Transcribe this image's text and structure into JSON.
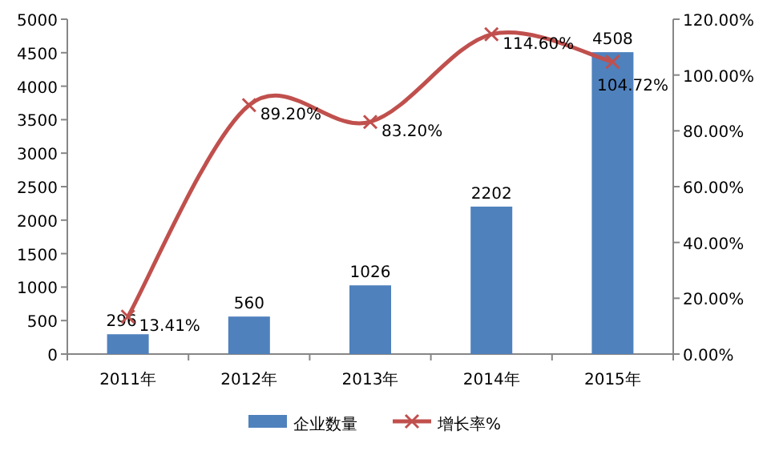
{
  "chart_data": {
    "type": "bar",
    "categories": [
      "2011年",
      "2012年",
      "2013年",
      "2014年",
      "2015年"
    ],
    "series": [
      {
        "name": "企业数量",
        "color": "#4f81bd",
        "values": [
          296,
          560,
          1026,
          2202,
          4508
        ],
        "value_labels": [
          "296",
          "560",
          "1026",
          "2202",
          "4508"
        ]
      },
      {
        "name": "增长率%",
        "type": "line",
        "axis": "y2",
        "color": "#c0504d",
        "marker": "cross",
        "values": [
          13.41,
          89.2,
          83.2,
          114.6,
          104.72
        ],
        "value_labels": [
          "13.41%",
          "89.20%",
          "83.20%",
          "114.60%",
          "104.72%"
        ]
      }
    ],
    "ylim": [
      0,
      5000
    ],
    "yticks": [
      0,
      500,
      1000,
      1500,
      2000,
      2500,
      3000,
      3500,
      4000,
      4500,
      5000
    ],
    "y2lim": [
      0,
      120
    ],
    "y2ticks": [
      {
        "value": 0,
        "label": "0.00%"
      },
      {
        "value": 20,
        "label": "20.00%"
      },
      {
        "value": 40,
        "label": "40.00%"
      },
      {
        "value": 60,
        "label": "60.00%"
      },
      {
        "value": 80,
        "label": "80.00%"
      },
      {
        "value": 100,
        "label": "100.00%"
      },
      {
        "value": 120,
        "label": "120.00%"
      }
    ],
    "grid": false,
    "legend": "bottom"
  }
}
